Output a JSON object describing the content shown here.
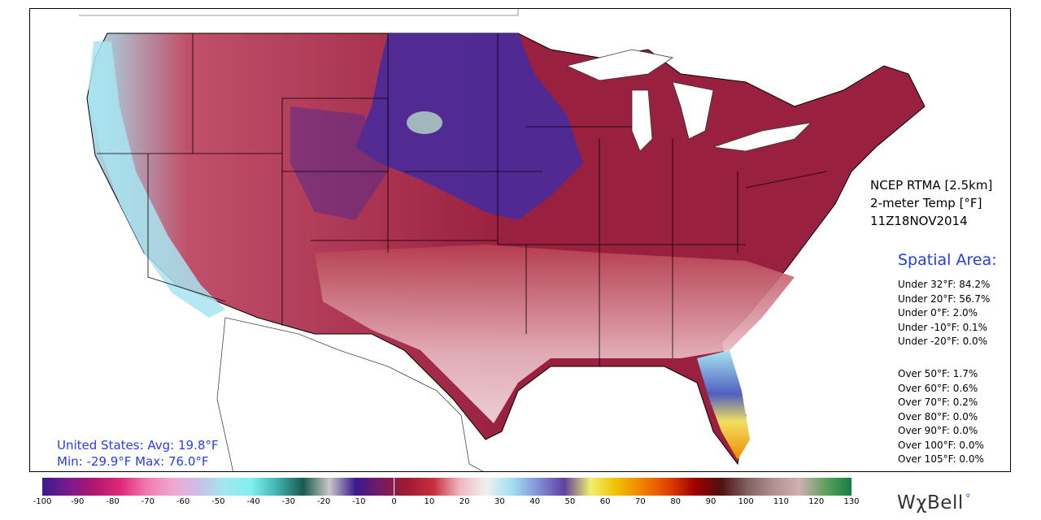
{
  "product": {
    "source": "NCEP RTMA [2.5km]",
    "variable": "2-meter Temp [°F]",
    "valid_time": "11Z18NOV2014"
  },
  "spatial_area": {
    "title": "Spatial Area:",
    "under": [
      "Under 32°F: 84.2%",
      "Under 20°F: 56.7%",
      "Under 0°F: 2.0%",
      "Under -10°F: 0.1%",
      "Under -20°F: 0.0%"
    ],
    "over": [
      "Over 50°F: 1.7%",
      "Over 60°F: 0.6%",
      "Over 70°F: 0.2%",
      "Over 80°F: 0.0%",
      "Over 90°F: 0.0%",
      "Over 100°F: 0.0%",
      "Over 105°F: 0.0%"
    ]
  },
  "us_stats": {
    "line1": "United States: Avg:  19.8°F",
    "line2": "Min: -29.9°F Max:  76.0°F"
  },
  "colorbar": {
    "ticks": [
      "-100",
      "-90",
      "-80",
      "-70",
      "-60",
      "-50",
      "-40",
      "-30",
      "-20",
      "-10",
      "0",
      "10",
      "20",
      "30",
      "40",
      "50",
      "60",
      "70",
      "80",
      "90",
      "100",
      "110",
      "120",
      "130"
    ],
    "stops": [
      "#3b1a8c",
      "#7a1a8c",
      "#b0186e",
      "#e0287a",
      "#f07ab0",
      "#f0a8d0",
      "#c8c0e8",
      "#a0e8f0",
      "#80f0f0",
      "#40b0b0",
      "#1a5a50",
      "#c8c8c8",
      "#3a1a90",
      "#7a1a60",
      "#a01a30",
      "#c83040",
      "#f0b8c0",
      "#f0f0f0",
      "#a0e0f0",
      "#8090d8",
      "#6040a0",
      "#f0f070",
      "#f0c000",
      "#f08000",
      "#e04000",
      "#a00000",
      "#501010",
      "#806060",
      "#b09090",
      "#d0b0b0",
      "#60a060",
      "#108040"
    ]
  },
  "logo": {
    "text": "WχBell",
    "mark": "°"
  },
  "map_colors": {
    "land_bg": "#ffffff",
    "cold_purple": "#4a2a9a",
    "cold_maroon": "#9a2040",
    "mild_pink": "#e8b8c0",
    "cool_cyan": "#a8e4f0",
    "warm_orange": "#f0a020"
  }
}
